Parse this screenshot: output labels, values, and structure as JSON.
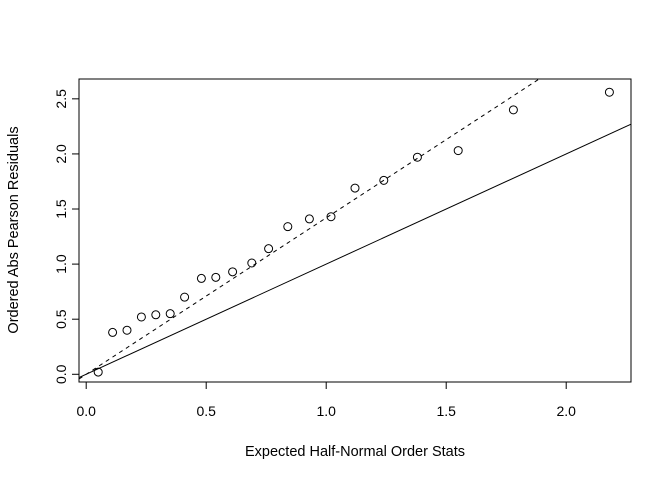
{
  "chart_data": {
    "type": "scatter",
    "title": "",
    "xlabel": "Expected Half-Normal Order Stats",
    "ylabel": "Ordered Abs Pearson Residuals",
    "xlim": [
      -0.03,
      2.27
    ],
    "ylim": [
      -0.07,
      2.68
    ],
    "xticks": [
      0.0,
      0.5,
      1.0,
      1.5,
      2.0
    ],
    "xtick_labels": [
      "0.0",
      "0.5",
      "1.0",
      "1.5",
      "2.0"
    ],
    "yticks": [
      0.0,
      0.5,
      1.0,
      1.5,
      2.0,
      2.5
    ],
    "ytick_labels": [
      "0.0",
      "0.5",
      "1.0",
      "1.5",
      "2.0",
      "2.5"
    ],
    "grid": false,
    "legend": "none",
    "points": {
      "x": [
        0.05,
        0.11,
        0.17,
        0.23,
        0.29,
        0.35,
        0.41,
        0.48,
        0.54,
        0.61,
        0.69,
        0.76,
        0.84,
        0.93,
        1.02,
        1.12,
        1.24,
        1.38,
        1.55,
        1.78,
        2.18
      ],
      "y": [
        0.02,
        0.38,
        0.4,
        0.52,
        0.54,
        0.55,
        0.7,
        0.87,
        0.88,
        0.93,
        1.01,
        1.14,
        1.34,
        1.41,
        1.43,
        1.69,
        1.76,
        1.97,
        2.03,
        2.4,
        2.56
      ]
    },
    "reference_lines": [
      {
        "style": "solid",
        "slope": 1.0,
        "intercept": 0.0
      },
      {
        "style": "dashed",
        "slope": 1.42,
        "intercept": 0.0
      }
    ]
  }
}
